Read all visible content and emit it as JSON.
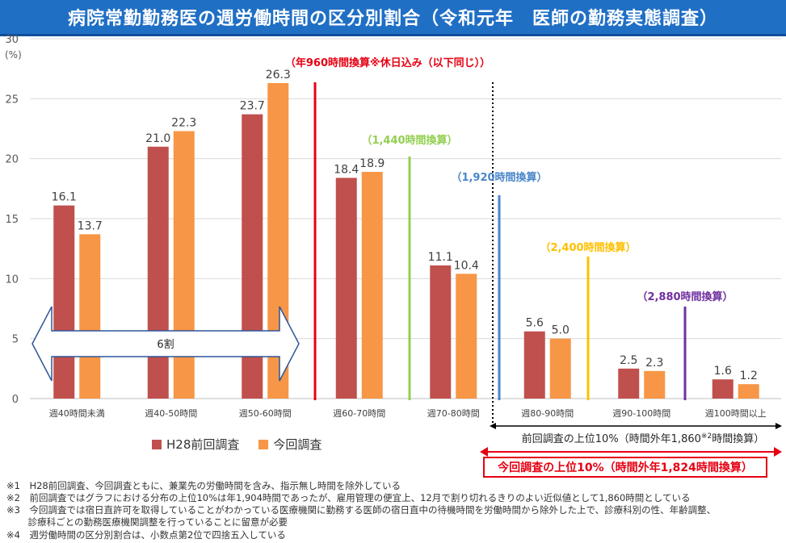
{
  "title": "病院常勤勤務医の週労働時間の区分別割合（令和元年　医師の勤務実態調査）",
  "chart_data": {
    "type": "bar",
    "ylabel": "(%)",
    "ylim": [
      0,
      30
    ],
    "yticks": [
      0,
      5,
      10,
      15,
      20,
      25,
      30
    ],
    "categories": [
      "週40時間未満",
      "週40-50時間",
      "週50-60時間",
      "週60-70時間",
      "週70-80時間",
      "週80-90時間",
      "週90-100時間",
      "週100時間以上"
    ],
    "series": [
      {
        "name": "H28前回調査",
        "color": "#c0504d",
        "values": [
          16.1,
          21.0,
          23.7,
          18.4,
          11.1,
          5.6,
          2.5,
          1.6
        ]
      },
      {
        "name": "今回調査",
        "color": "#f79646",
        "values": [
          13.7,
          22.3,
          26.3,
          18.9,
          10.4,
          5.0,
          2.3,
          1.2
        ]
      }
    ],
    "annotations": {
      "line_960": "（年960時間換算※休日込み（以下同じ））",
      "line_1440": "（1,440時間換算）",
      "line_1920": "（1,920時間換算）",
      "line_2400": "（2,400時間換算）",
      "line_2880": "（2,880時間換算）",
      "arrow_6wari": "6割",
      "prev_top10": "前回調査の上位10%（時間外年1,860",
      "prev_top10_sup": "※2",
      "prev_top10_end": "時間換算）",
      "curr_top10": "今回調査の上位10%（時間外年1,824時間換算）"
    }
  },
  "colors": {
    "red_line": "#e60012",
    "green_line": "#92d050",
    "blue_line": "#4a86c8",
    "yellow_line": "#ffc000",
    "purple_line": "#7030a0",
    "title_bg": "#1f6fc5"
  },
  "notes": [
    "※1　H28前回調査、今回調査ともに、兼業先の労働時間を含み、指示無し時間を除外している",
    "※2　前回調査ではグラフにおける分布の上位10%は年1,904時間であったが、雇用管理の便宜上、12月で割り切れるきりのよい近似値として1,860時間としている",
    "※3　今回調査では宿日直許可を取得していることがわかっている医療機関に勤務する医師の宿日直中の待機時間を労働時間から除外した上で、診療科別の性、年齢調整、",
    "　　 診療科ごとの勤務医療機関調整を行っていることに留意が必要",
    "※4　週労働時間の区分別割合は、小数点第2位で四捨五入している"
  ]
}
